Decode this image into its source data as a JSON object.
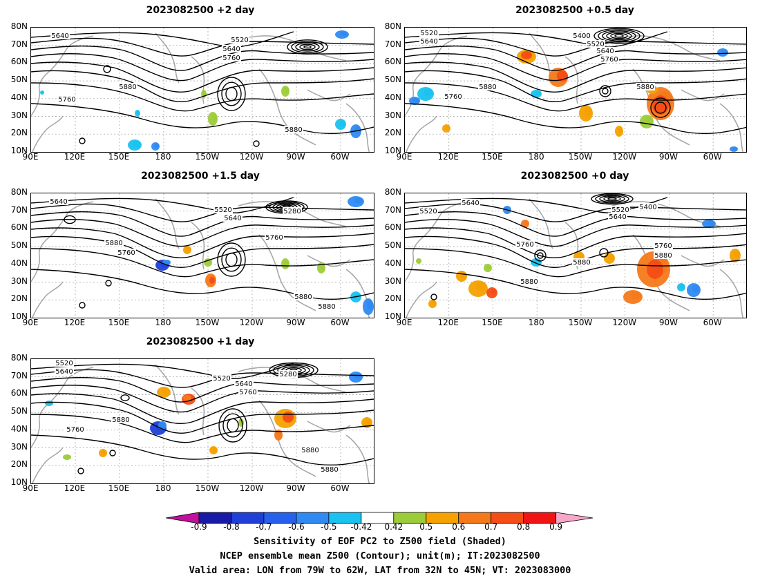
{
  "panels": [
    {
      "title": "2023082500  +2 day"
    },
    {
      "title": "2023082500  +0.5 day"
    },
    {
      "title": "2023082500  +1.5 day"
    },
    {
      "title": "2023082500  +0 day"
    },
    {
      "title": "2023082500  +1 day"
    }
  ],
  "lat_labels": [
    "80N",
    "70N",
    "60N",
    "50N",
    "40N",
    "30N",
    "20N",
    "10N"
  ],
  "lon_labels": [
    "90E",
    "120E",
    "150E",
    "180",
    "150W",
    "120W",
    "90W",
    "60W"
  ],
  "contour_labels": {
    "p2": [
      "5640",
      "5520",
      "5640",
      "5760",
      "5880",
      "5760",
      "5880"
    ],
    "p05": [
      "5520",
      "5640",
      "5400",
      "5520",
      "5640",
      "5760",
      "5880",
      "5760",
      "5880"
    ],
    "p15": [
      "5640",
      "5520",
      "5640",
      "5280",
      "5760",
      "5880",
      "5760",
      "5880",
      "5880"
    ],
    "p0": [
      "5520",
      "5640",
      "5520",
      "5400",
      "5640",
      "5760",
      "5760",
      "5880",
      "5880",
      "5880"
    ],
    "p1": [
      "5520",
      "5640",
      "5520",
      "5640",
      "5280",
      "5760",
      "5880",
      "5760",
      "5880",
      "5880"
    ]
  },
  "colorbar": {
    "labels": [
      "-0.9",
      "-0.8",
      "-0.7",
      "-0.6",
      "-0.5",
      "-0.42",
      "0.42",
      "0.5",
      "0.6",
      "0.7",
      "0.8",
      "0.9"
    ],
    "colors": [
      "#1a1aa8",
      "#1f3fd8",
      "#2860ee",
      "#2f8af2",
      "#19c2f0",
      "#ffffff",
      "#9dcc3a",
      "#f5a100",
      "#f5791a",
      "#f54d16",
      "#f01414"
    ],
    "left_arrow_color": "#c0109c",
    "right_arrow_color": "#f7a7c9"
  },
  "caption": {
    "line1": "Sensitivity of EOF PC2 to Z500 field (Shaded)",
    "line2": "NCEP ensemble mean Z500 (Contour); unit(m); IT:2023082500",
    "line3": "Valid area: LON from 79W to 62W, LAT from 32N to 45N; VT: 2023083000"
  }
}
